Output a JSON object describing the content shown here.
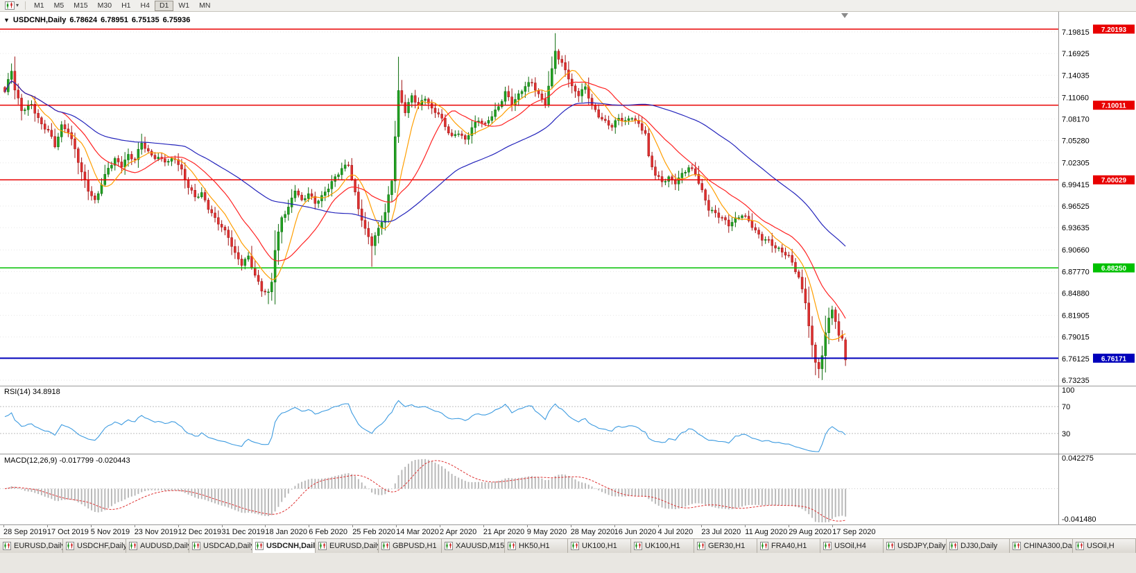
{
  "toolbar": {
    "chart_type_icon": "candlestick-chart-icon",
    "dropdown_icon": "▾",
    "timeframes": [
      "M1",
      "M5",
      "M15",
      "M30",
      "H1",
      "H4",
      "D1",
      "W1",
      "MN"
    ],
    "active_timeframe": "D1"
  },
  "chart": {
    "header": {
      "collapse_icon": "▼",
      "symbol": "USDCNH,Daily",
      "open": "6.78624",
      "high": "6.78951",
      "low": "6.75135",
      "close": "6.75936"
    },
    "price_top": 7.2251,
    "price_bottom": 6.7249,
    "y_axis_labels": [
      "7.19815",
      "7.16925",
      "7.14035",
      "7.11060",
      "7.08170",
      "7.05280",
      "7.02305",
      "6.99415",
      "6.96525",
      "6.93635",
      "6.90660",
      "6.87770",
      "6.84880",
      "6.81905",
      "6.79015",
      "6.76125",
      "6.73235"
    ],
    "hlines": [
      {
        "price": 7.20193,
        "label": "7.20193",
        "color": "#e80000",
        "width": 1.5
      },
      {
        "price": 7.10011,
        "label": "7.10011",
        "color": "#e80000",
        "width": 1.5
      },
      {
        "price": 7.00029,
        "label": "7.00029",
        "color": "#e80000",
        "width": 1.5
      },
      {
        "price": 6.8825,
        "label": "6.88250",
        "color": "#00c000",
        "width": 1.5
      },
      {
        "price": 6.76171,
        "label": "6.76171",
        "color": "#0000bb",
        "width": 2
      }
    ]
  },
  "panes": {
    "rsi": {
      "label": "RSI(14) 34.8918",
      "levels": [
        {
          "value": 100,
          "label": "100",
          "line": false
        },
        {
          "value": 70,
          "label": "70",
          "line": true
        },
        {
          "value": 30,
          "label": "30",
          "line": true
        }
      ]
    },
    "macd": {
      "label": "MACD(12,26,9) -0.017799 -0.020443",
      "scale_top": "0.042275",
      "scale_bottom": "-0.041480",
      "range": 0.042275
    }
  },
  "x_axis": {
    "dates": [
      "28 Sep 2019",
      "17 Oct 2019",
      "5 Nov 2019",
      "23 Nov 2019",
      "12 Dec 2019",
      "31 Dec 2019",
      "18 Jan 2020",
      "6 Feb 2020",
      "25 Feb 2020",
      "14 Mar 2020",
      "2 Apr 2020",
      "21 Apr 2020",
      "9 May 2020",
      "28 May 2020",
      "16 Jun 2020",
      "4 Jul 2020",
      "23 Jul 2020",
      "11 Aug 2020",
      "29 Aug 2020",
      "17 Sep 2020"
    ]
  },
  "tabs": [
    "EURUSD,Daily",
    "USDCHF,Daily",
    "AUDUSD,Daily",
    "USDCAD,Daily",
    "USDCNH,Daily",
    "EURUSD,Daily",
    "GBPUSD,H1",
    "XAUUSD,M15",
    "HK50,H1",
    "UK100,H1",
    "UK100,H1",
    "GER30,H1",
    "FRA40,H1",
    "USOil,H4",
    "USDJPY,Daily",
    "DJ30,Daily",
    "CHINA300,Daily",
    "USOil,H"
  ],
  "active_tab_index": 4,
  "colors": {
    "bull": "#21a121",
    "bull_border": "#0b6b0b",
    "bear": "#de3030",
    "bear_border": "#a01313",
    "rsi_line": "#3d9be0",
    "macd_histogram": "#b9b9b9",
    "macd_signal": "#de3030",
    "grid": "#e6e6e6",
    "separator": "#999999",
    "hline_red": "#e80000",
    "hline_green": "#00c000",
    "hline_blue": "#0000bb"
  },
  "chart_data": {
    "type": "candlestick",
    "symbol": "USDCNH",
    "timeframe": "Daily",
    "days": 253,
    "ohlc_last": {
      "open": 6.78624,
      "high": 6.78951,
      "low": 6.75135,
      "close": 6.75936
    },
    "close_anchors": [
      [
        0,
        7.118
      ],
      [
        2,
        7.146
      ],
      [
        3,
        7.12
      ],
      [
        5,
        7.092
      ],
      [
        8,
        7.101
      ],
      [
        11,
        7.075
      ],
      [
        13,
        7.068
      ],
      [
        15,
        7.046
      ],
      [
        17,
        7.071
      ],
      [
        19,
        7.064
      ],
      [
        21,
        7.04
      ],
      [
        23,
        7.01
      ],
      [
        25,
        6.988
      ],
      [
        27,
        6.973
      ],
      [
        29,
        6.996
      ],
      [
        31,
        7.016
      ],
      [
        33,
        7.026
      ],
      [
        35,
        7.018
      ],
      [
        37,
        7.032
      ],
      [
        39,
        7.028
      ],
      [
        41,
        7.052
      ],
      [
        43,
        7.038
      ],
      [
        45,
        7.031
      ],
      [
        47,
        7.027
      ],
      [
        49,
        7.023
      ],
      [
        51,
        7.028
      ],
      [
        53,
        7.012
      ],
      [
        55,
        6.992
      ],
      [
        57,
        6.979
      ],
      [
        59,
        6.983
      ],
      [
        61,
        6.963
      ],
      [
        63,
        6.947
      ],
      [
        65,
        6.936
      ],
      [
        67,
        6.923
      ],
      [
        69,
        6.901
      ],
      [
        71,
        6.889
      ],
      [
        73,
        6.899
      ],
      [
        75,
        6.873
      ],
      [
        77,
        6.853
      ],
      [
        79,
        6.847
      ],
      [
        80,
        6.863
      ],
      [
        81,
        6.906
      ],
      [
        83,
        6.949
      ],
      [
        85,
        6.963
      ],
      [
        87,
        6.989
      ],
      [
        89,
        6.973
      ],
      [
        91,
        6.983
      ],
      [
        93,
        6.969
      ],
      [
        95,
        6.976
      ],
      [
        97,
        6.989
      ],
      [
        99,
        7.003
      ],
      [
        101,
        7.016
      ],
      [
        103,
        7.023
      ],
      [
        104,
        7.003
      ],
      [
        106,
        6.963
      ],
      [
        108,
        6.933
      ],
      [
        110,
        6.913
      ],
      [
        112,
        6.933
      ],
      [
        114,
        6.956
      ],
      [
        116,
        7.001
      ],
      [
        118,
        7.119
      ],
      [
        120,
        7.093
      ],
      [
        122,
        7.113
      ],
      [
        124,
        7.099
      ],
      [
        126,
        7.109
      ],
      [
        128,
        7.093
      ],
      [
        130,
        7.089
      ],
      [
        132,
        7.073
      ],
      [
        134,
        7.059
      ],
      [
        136,
        7.065
      ],
      [
        138,
        7.053
      ],
      [
        140,
        7.069
      ],
      [
        142,
        7.079
      ],
      [
        144,
        7.073
      ],
      [
        146,
        7.087
      ],
      [
        148,
        7.099
      ],
      [
        150,
        7.119
      ],
      [
        152,
        7.103
      ],
      [
        154,
        7.113
      ],
      [
        156,
        7.125
      ],
      [
        158,
        7.129
      ],
      [
        160,
        7.113
      ],
      [
        162,
        7.103
      ],
      [
        164,
        7.149
      ],
      [
        165,
        7.176
      ],
      [
        166,
        7.163
      ],
      [
        168,
        7.149
      ],
      [
        170,
        7.123
      ],
      [
        172,
        7.113
      ],
      [
        174,
        7.123
      ],
      [
        176,
        7.099
      ],
      [
        178,
        7.087
      ],
      [
        180,
        7.079
      ],
      [
        182,
        7.073
      ],
      [
        184,
        7.083
      ],
      [
        186,
        7.077
      ],
      [
        188,
        7.083
      ],
      [
        190,
        7.073
      ],
      [
        192,
        7.063
      ],
      [
        193,
        7.031
      ],
      [
        195,
        7.009
      ],
      [
        197,
        6.999
      ],
      [
        199,
        7.003
      ],
      [
        201,
        6.996
      ],
      [
        203,
        7.006
      ],
      [
        205,
        7.016
      ],
      [
        207,
        7.009
      ],
      [
        209,
        6.986
      ],
      [
        211,
        6.963
      ],
      [
        213,
        6.956
      ],
      [
        215,
        6.949
      ],
      [
        217,
        6.939
      ],
      [
        219,
        6.946
      ],
      [
        221,
        6.953
      ],
      [
        223,
        6.946
      ],
      [
        225,
        6.933
      ],
      [
        227,
        6.923
      ],
      [
        229,
        6.919
      ],
      [
        231,
        6.909
      ],
      [
        233,
        6.903
      ],
      [
        235,
        6.896
      ],
      [
        236,
        6.889
      ],
      [
        238,
        6.869
      ],
      [
        240,
        6.839
      ],
      [
        241,
        6.806
      ],
      [
        242,
        6.779
      ],
      [
        243,
        6.759
      ],
      [
        244,
        6.749
      ],
      [
        245,
        6.763
      ],
      [
        246,
        6.796
      ],
      [
        247,
        6.816
      ],
      [
        248,
        6.823
      ],
      [
        249,
        6.809
      ],
      [
        250,
        6.793
      ],
      [
        251,
        6.786
      ],
      [
        252,
        6.759
      ]
    ],
    "spikes": [
      {
        "day": 41,
        "high": 7.062
      },
      {
        "day": 79,
        "low": 6.834
      },
      {
        "day": 110,
        "low": 6.884
      },
      {
        "day": 118,
        "high": 7.165
      },
      {
        "day": 165,
        "high": 7.1965
      },
      {
        "day": 244,
        "low": 6.735
      }
    ],
    "moving_averages": [
      {
        "period": 8,
        "color": "#ff9e00"
      },
      {
        "period": 18,
        "color": "#ff2222"
      },
      {
        "period": 55,
        "color": "#2323bb"
      }
    ],
    "rsi_period": 14,
    "macd_params": {
      "fast": 12,
      "slow": 26,
      "signal": 9
    }
  }
}
